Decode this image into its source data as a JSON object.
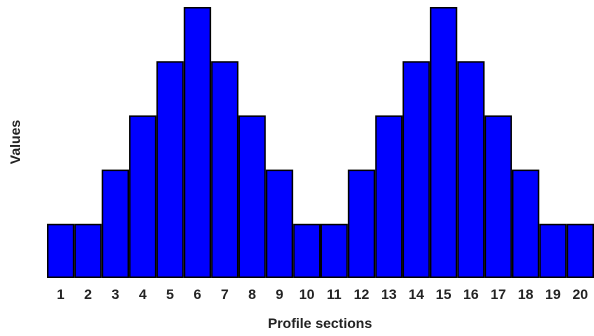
{
  "chart_data": {
    "type": "bar",
    "categories": [
      "1",
      "2",
      "3",
      "4",
      "5",
      "6",
      "7",
      "8",
      "9",
      "10",
      "11",
      "12",
      "13",
      "14",
      "15",
      "16",
      "17",
      "18",
      "19",
      "20"
    ],
    "values": [
      1,
      1,
      2,
      3,
      4,
      5,
      4,
      3,
      2,
      1,
      1,
      2,
      3,
      4,
      5,
      4,
      3,
      2,
      1,
      1
    ],
    "xlabel": "Profile sections",
    "ylabel": "Values",
    "ylim": [
      0,
      5
    ],
    "grid": false,
    "bar_color": "#0000ff",
    "bar_edge_color": "#000000"
  }
}
